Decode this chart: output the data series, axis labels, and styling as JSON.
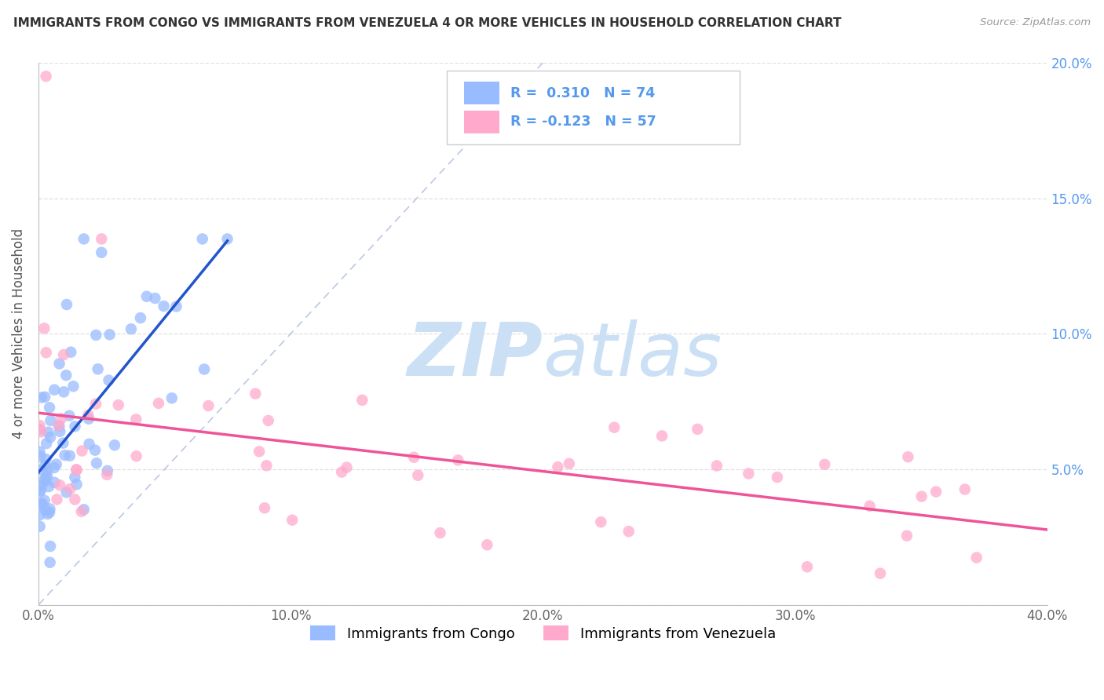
{
  "title": "IMMIGRANTS FROM CONGO VS IMMIGRANTS FROM VENEZUELA 4 OR MORE VEHICLES IN HOUSEHOLD CORRELATION CHART",
  "source": "Source: ZipAtlas.com",
  "ylabel": "4 or more Vehicles in Household",
  "xlim": [
    0.0,
    0.4
  ],
  "ylim": [
    0.0,
    0.2
  ],
  "xticks": [
    0.0,
    0.1,
    0.2,
    0.3,
    0.4
  ],
  "xtick_labels": [
    "0.0%",
    "10.0%",
    "20.0%",
    "30.0%",
    "40.0%"
  ],
  "yticks": [
    0.0,
    0.05,
    0.1,
    0.15,
    0.2
  ],
  "ytick_labels_right": [
    "",
    "5.0%",
    "10.0%",
    "15.0%",
    "20.0%"
  ],
  "congo_color": "#99bbff",
  "venezuela_color": "#ffaacc",
  "trend_congo_color": "#2255cc",
  "trend_venezuela_color": "#ee5599",
  "diag_color": "#aabbdd",
  "watermark_color": "#cce0f5",
  "legend_box_edge": "#cccccc",
  "tick_color": "#5599ee",
  "title_color": "#333333",
  "source_color": "#999999",
  "grid_color": "#dddddd",
  "congo_seed": 77,
  "venezuela_seed": 88
}
